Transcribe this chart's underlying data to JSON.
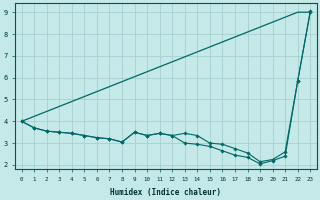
{
  "xlabel": "Humidex (Indice chaleur)",
  "bg_color": "#c5e8e8",
  "grid_color": "#a8d0d0",
  "line_color": "#006868",
  "xlim": [
    -0.5,
    23.5
  ],
  "ylim": [
    1.8,
    9.4
  ],
  "xticks": [
    0,
    1,
    2,
    3,
    4,
    5,
    6,
    7,
    8,
    9,
    10,
    11,
    12,
    13,
    14,
    15,
    16,
    17,
    18,
    19,
    20,
    21,
    22,
    23
  ],
  "yticks": [
    2,
    3,
    4,
    5,
    6,
    7,
    8,
    9
  ],
  "line1_x": [
    0,
    22,
    23
  ],
  "line1_y": [
    4.0,
    9.0,
    9.0
  ],
  "line2_x": [
    0,
    1,
    2,
    3,
    4,
    5,
    6,
    7,
    8,
    9,
    10,
    11,
    12,
    13,
    14,
    15,
    16,
    17,
    18,
    19,
    20,
    21,
    22,
    23
  ],
  "line2_y": [
    4.0,
    3.7,
    3.55,
    3.5,
    3.45,
    3.35,
    3.25,
    3.2,
    3.05,
    3.5,
    3.35,
    3.45,
    3.35,
    3.45,
    3.35,
    3.0,
    2.95,
    2.75,
    2.55,
    2.15,
    2.25,
    2.6,
    5.85,
    9.0
  ],
  "line3_x": [
    0,
    1,
    2,
    3,
    4,
    5,
    6,
    7,
    8,
    9,
    10,
    11,
    12,
    13,
    14,
    15,
    16,
    17,
    18,
    19,
    20,
    21,
    22,
    23
  ],
  "line3_y": [
    4.0,
    3.7,
    3.55,
    3.5,
    3.45,
    3.35,
    3.25,
    3.2,
    3.05,
    3.5,
    3.35,
    3.45,
    3.35,
    3.0,
    2.95,
    2.85,
    2.65,
    2.45,
    2.35,
    2.05,
    2.2,
    2.4,
    5.85,
    9.05
  ]
}
